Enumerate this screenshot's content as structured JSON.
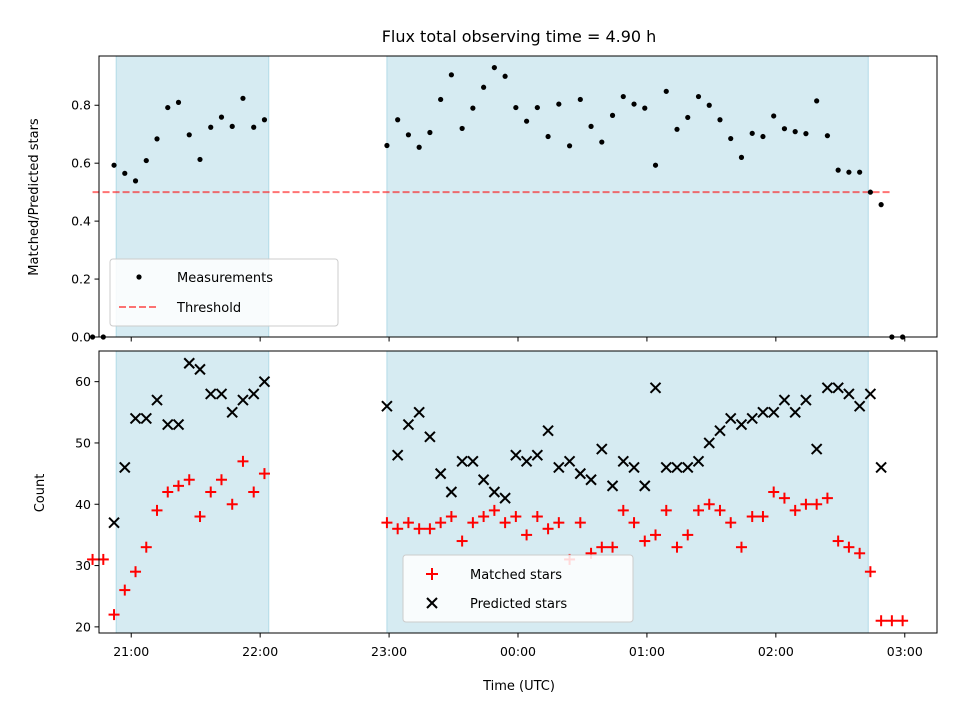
{
  "figure": {
    "title": "Flux total observing time = 4.90 h",
    "xlabel": "Time (UTC)"
  },
  "colors": {
    "shade": "#add8e6",
    "measurement": "#000000",
    "threshold": "#ff0000",
    "matched": "#ff0000",
    "predicted": "#000000"
  },
  "chart_data": [
    {
      "type": "scatter",
      "ylabel": "Matched/Predicted stars",
      "xlim": [
        "20:45",
        "03:15"
      ],
      "ylim": [
        0,
        0.97
      ],
      "x_ticks": [
        "21:00",
        "22:00",
        "23:00",
        "00:00",
        "01:00",
        "02:00",
        "03:00"
      ],
      "y_ticks": [
        0.0,
        0.2,
        0.4,
        0.6,
        0.8
      ],
      "y_tick_labels": [
        "0.0",
        "0.2",
        "0.4",
        "0.6",
        "0.8"
      ],
      "show_x_tick_labels": false,
      "legend": {
        "placement": "lower-left",
        "entries": [
          "Measurements",
          "Threshold"
        ]
      },
      "threshold": {
        "name": "Threshold",
        "y": 0.5,
        "x_range": [
          "20:42",
          "02:53"
        ]
      },
      "shaded_spans": [
        [
          "20:53",
          "22:04"
        ],
        [
          "22:59",
          "02:43"
        ]
      ],
      "series": [
        {
          "name": "Measurements",
          "marker": "dot",
          "points": [
            [
              "20:42",
              0.0
            ],
            [
              "20:47",
              0.0
            ],
            [
              "20:52",
              0.593
            ],
            [
              "20:57",
              0.565
            ],
            [
              "21:02",
              0.539
            ],
            [
              "21:07",
              0.609
            ],
            [
              "21:12",
              0.684
            ],
            [
              "21:17",
              0.792
            ],
            [
              "21:22",
              0.81
            ],
            [
              "21:27",
              0.698
            ],
            [
              "21:32",
              0.613
            ],
            [
              "21:37",
              0.724
            ],
            [
              "21:42",
              0.759
            ],
            [
              "21:47",
              0.727
            ],
            [
              "21:52",
              0.824
            ],
            [
              "21:57",
              0.724
            ],
            [
              "22:02",
              0.75
            ],
            [
              "22:59",
              0.661
            ],
            [
              "23:04",
              0.75
            ],
            [
              "23:09",
              0.698
            ],
            [
              "23:14",
              0.655
            ],
            [
              "23:19",
              0.706
            ],
            [
              "23:24",
              0.82
            ],
            [
              "23:29",
              0.905
            ],
            [
              "23:34",
              0.72
            ],
            [
              "23:39",
              0.79
            ],
            [
              "23:44",
              0.862
            ],
            [
              "23:49",
              0.93
            ],
            [
              "23:54",
              0.9
            ],
            [
              "23:59",
              0.792
            ],
            [
              "00:04",
              0.745
            ],
            [
              "00:09",
              0.792
            ],
            [
              "00:14",
              0.692
            ],
            [
              "00:19",
              0.804
            ],
            [
              "00:24",
              0.66
            ],
            [
              "00:29",
              0.82
            ],
            [
              "00:34",
              0.727
            ],
            [
              "00:39",
              0.673
            ],
            [
              "00:44",
              0.765
            ],
            [
              "00:49",
              0.83
            ],
            [
              "00:54",
              0.804
            ],
            [
              "00:59",
              0.79
            ],
            [
              "01:04",
              0.593
            ],
            [
              "01:09",
              0.848
            ],
            [
              "01:14",
              0.717
            ],
            [
              "01:19",
              0.758
            ],
            [
              "01:24",
              0.83
            ],
            [
              "01:29",
              0.8
            ],
            [
              "01:34",
              0.75
            ],
            [
              "01:39",
              0.685
            ],
            [
              "01:44",
              0.62
            ],
            [
              "01:49",
              0.703
            ],
            [
              "01:54",
              0.692
            ],
            [
              "01:59",
              0.763
            ],
            [
              "02:04",
              0.719
            ],
            [
              "02:09",
              0.709
            ],
            [
              "02:14",
              0.702
            ],
            [
              "02:19",
              0.815
            ],
            [
              "02:24",
              0.695
            ],
            [
              "02:29",
              0.576
            ],
            [
              "02:34",
              0.569
            ],
            [
              "02:39",
              0.569
            ],
            [
              "02:44",
              0.5
            ],
            [
              "02:49",
              0.457
            ],
            [
              "02:54",
              0.0
            ],
            [
              "02:59",
              0.0
            ]
          ]
        }
      ]
    },
    {
      "type": "scatter",
      "ylabel": "Count",
      "xlim": [
        "20:45",
        "03:15"
      ],
      "ylim": [
        19,
        65
      ],
      "x_ticks": [
        "21:00",
        "22:00",
        "23:00",
        "00:00",
        "01:00",
        "02:00",
        "03:00"
      ],
      "x_tick_labels": [
        "21:00",
        "22:00",
        "23:00",
        "00:00",
        "01:00",
        "02:00",
        "03:00"
      ],
      "y_ticks": [
        20,
        30,
        40,
        50,
        60
      ],
      "y_tick_labels": [
        "20",
        "30",
        "40",
        "50",
        "60"
      ],
      "legend": {
        "placement": "lower-center",
        "entries": [
          "Matched stars",
          "Predicted stars"
        ]
      },
      "shaded_spans": [
        [
          "20:53",
          "22:04"
        ],
        [
          "22:59",
          "02:43"
        ]
      ],
      "series": [
        {
          "name": "Matched stars",
          "marker": "plus",
          "points": [
            [
              "20:42",
              31
            ],
            [
              "20:47",
              31
            ],
            [
              "20:52",
              22
            ],
            [
              "20:57",
              26
            ],
            [
              "21:02",
              29
            ],
            [
              "21:07",
              33
            ],
            [
              "21:12",
              39
            ],
            [
              "21:17",
              42
            ],
            [
              "21:22",
              43
            ],
            [
              "21:27",
              44
            ],
            [
              "21:32",
              38
            ],
            [
              "21:37",
              42
            ],
            [
              "21:42",
              44
            ],
            [
              "21:47",
              40
            ],
            [
              "21:52",
              47
            ],
            [
              "21:57",
              42
            ],
            [
              "22:02",
              45
            ],
            [
              "22:59",
              37
            ],
            [
              "23:04",
              36
            ],
            [
              "23:09",
              37
            ],
            [
              "23:14",
              36
            ],
            [
              "23:19",
              36
            ],
            [
              "23:24",
              37
            ],
            [
              "23:29",
              38
            ],
            [
              "23:34",
              34
            ],
            [
              "23:39",
              37
            ],
            [
              "23:44",
              38
            ],
            [
              "23:49",
              39
            ],
            [
              "23:54",
              37
            ],
            [
              "23:59",
              38
            ],
            [
              "00:04",
              35
            ],
            [
              "00:09",
              38
            ],
            [
              "00:14",
              36
            ],
            [
              "00:19",
              37
            ],
            [
              "00:24",
              31
            ],
            [
              "00:29",
              37
            ],
            [
              "00:34",
              32
            ],
            [
              "00:39",
              33
            ],
            [
              "00:44",
              33
            ],
            [
              "00:49",
              39
            ],
            [
              "00:54",
              37
            ],
            [
              "00:59",
              34
            ],
            [
              "01:04",
              35
            ],
            [
              "01:09",
              39
            ],
            [
              "01:14",
              33
            ],
            [
              "01:19",
              35
            ],
            [
              "01:24",
              39
            ],
            [
              "01:29",
              40
            ],
            [
              "01:34",
              39
            ],
            [
              "01:39",
              37
            ],
            [
              "01:44",
              33
            ],
            [
              "01:49",
              38
            ],
            [
              "01:54",
              38
            ],
            [
              "01:59",
              42
            ],
            [
              "02:04",
              41
            ],
            [
              "02:09",
              39
            ],
            [
              "02:14",
              40
            ],
            [
              "02:19",
              40
            ],
            [
              "02:24",
              41
            ],
            [
              "02:29",
              34
            ],
            [
              "02:34",
              33
            ],
            [
              "02:39",
              32
            ],
            [
              "02:44",
              29
            ],
            [
              "02:49",
              21
            ],
            [
              "02:54",
              21
            ],
            [
              "02:59",
              21
            ]
          ]
        },
        {
          "name": "Predicted stars",
          "marker": "x",
          "points": [
            [
              "20:52",
              37
            ],
            [
              "20:57",
              46
            ],
            [
              "21:02",
              54
            ],
            [
              "21:07",
              54
            ],
            [
              "21:12",
              57
            ],
            [
              "21:17",
              53
            ],
            [
              "21:22",
              53
            ],
            [
              "21:27",
              63
            ],
            [
              "21:32",
              62
            ],
            [
              "21:37",
              58
            ],
            [
              "21:42",
              58
            ],
            [
              "21:47",
              55
            ],
            [
              "21:52",
              57
            ],
            [
              "21:57",
              58
            ],
            [
              "22:02",
              60
            ],
            [
              "22:59",
              56
            ],
            [
              "23:04",
              48
            ],
            [
              "23:09",
              53
            ],
            [
              "23:14",
              55
            ],
            [
              "23:19",
              51
            ],
            [
              "23:24",
              45
            ],
            [
              "23:29",
              42
            ],
            [
              "23:34",
              47
            ],
            [
              "23:39",
              47
            ],
            [
              "23:44",
              44
            ],
            [
              "23:49",
              42
            ],
            [
              "23:54",
              41
            ],
            [
              "23:59",
              48
            ],
            [
              "00:04",
              47
            ],
            [
              "00:09",
              48
            ],
            [
              "00:14",
              52
            ],
            [
              "00:19",
              46
            ],
            [
              "00:24",
              47
            ],
            [
              "00:29",
              45
            ],
            [
              "00:34",
              44
            ],
            [
              "00:39",
              49
            ],
            [
              "00:44",
              43
            ],
            [
              "00:49",
              47
            ],
            [
              "00:54",
              46
            ],
            [
              "00:59",
              43
            ],
            [
              "01:04",
              59
            ],
            [
              "01:09",
              46
            ],
            [
              "01:14",
              46
            ],
            [
              "01:19",
              46
            ],
            [
              "01:24",
              47
            ],
            [
              "01:29",
              50
            ],
            [
              "01:34",
              52
            ],
            [
              "01:39",
              54
            ],
            [
              "01:44",
              53
            ],
            [
              "01:49",
              54
            ],
            [
              "01:54",
              55
            ],
            [
              "01:59",
              55
            ],
            [
              "02:04",
              57
            ],
            [
              "02:09",
              55
            ],
            [
              "02:14",
              57
            ],
            [
              "02:19",
              49
            ],
            [
              "02:24",
              59
            ],
            [
              "02:29",
              59
            ],
            [
              "02:34",
              58
            ],
            [
              "02:39",
              56
            ],
            [
              "02:44",
              58
            ],
            [
              "02:49",
              46
            ]
          ]
        }
      ]
    }
  ]
}
